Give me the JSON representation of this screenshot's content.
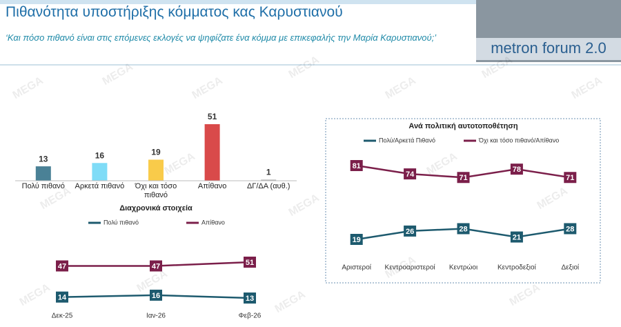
{
  "header": {
    "title": "Πιθανότητα υποστήριξης κόμματος κας Καρυστιανού",
    "subtitle": "‘Και πόσο πιθανό είναι στις επόμενες εκλογές να ψηφίζατε ένα κόμμα με επικεφαλής την Μαρία Καρυστιανού;’",
    "logo": "metron forum 2.0"
  },
  "watermark": "MEGA",
  "chart_data": [
    {
      "type": "bar",
      "categories": [
        "Πολύ πιθανό",
        "Αρκετά πιθανό",
        "Όχι και τόσο πιθανό",
        "Απίθανο",
        "ΔΓ/ΔΑ (αυθ.)"
      ],
      "values": [
        13,
        16,
        19,
        51,
        1
      ],
      "colors": [
        "#4a8196",
        "#7fdcf7",
        "#f9cb4a",
        "#d94a4a",
        "#b0b0b0"
      ]
    },
    {
      "type": "line",
      "title": "Διαχρονικά στοιχεία",
      "categories": [
        "Δεκ-25",
        "Ιαν-26",
        "Φεβ-26"
      ],
      "series": [
        {
          "name": "Πολύ πιθανό",
          "color": "#1d5a6e",
          "values": [
            14,
            16,
            13
          ]
        },
        {
          "name": "Απίθανο",
          "color": "#7b1f4a",
          "values": [
            47,
            47,
            51
          ]
        }
      ]
    },
    {
      "type": "line",
      "title": "Ανά πολιτική αυτοτοποθέτηση",
      "categories": [
        "Αριστεροί",
        "Κεντροαριστεροί",
        "Κεντρώοι",
        "Κεντροδεξιοί",
        "Δεξιοί"
      ],
      "series": [
        {
          "name": "Πολύ/Αρκετά Πιθανό",
          "color": "#1d5a6e",
          "values": [
            19,
            26,
            28,
            21,
            28
          ]
        },
        {
          "name": "Όχι και τόσο πιθανό/Απίθανο",
          "color": "#7b1f4a",
          "values": [
            81,
            74,
            71,
            78,
            71
          ]
        }
      ]
    }
  ]
}
